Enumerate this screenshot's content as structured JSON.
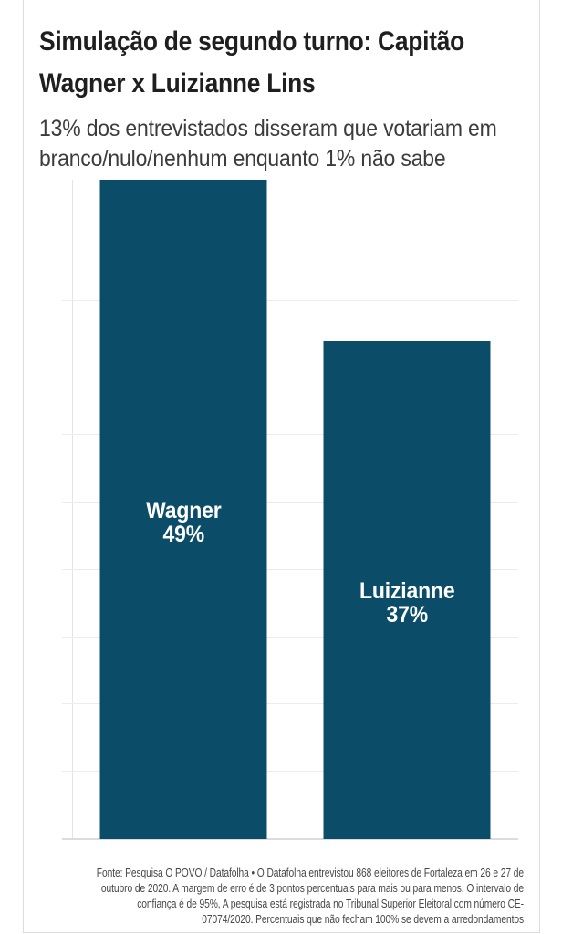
{
  "header": {
    "title": "Simulação de segundo turno: Capitão Wagner x Luizianne Lins",
    "title_lines": [
      "Simulação de segundo turno: Capitão",
      "Wagner x Luizianne Lins"
    ],
    "subtitle": "13% dos entrevistados disseram que votariam em branco/nulo/nenhum enquanto 1% não sabe",
    "subtitle_lines": [
      "13% dos entrevistados disseram que votariam em",
      "branco/nulo/nenhum enquanto 1% não sabe"
    ]
  },
  "chart_data": {
    "type": "bar",
    "title": "Simulação de segundo turno: Capitão Wagner x Luizianne Lins",
    "subtitle": "13% dos entrevistados disseram que votariam em branco/nulo/nenhum enquanto 1% não sabe",
    "categories": [
      "Wagner",
      "Luizianne"
    ],
    "values": [
      49,
      37
    ],
    "value_labels": [
      "49%",
      "37%"
    ],
    "bar_color": "#0b4d68",
    "label_color": "#ffffff",
    "gridline_color": "#ececec",
    "ylim": [
      0,
      49
    ],
    "grid_step": 5,
    "grid": "horizontal gridlines every 5%, tick stubs left of axis, no numeric axis labels",
    "legend": "none",
    "xlabel": "",
    "ylabel": "",
    "source": "Fonte: Pesquisa O POVO / Datafolha • O Datafolha entrevistou 868 eleitores de Fortaleza em 26 e 27 de outubro de 2020. A margem de erro é de 3 pontos percentuais para mais ou para menos. O intervalo de confiança é de 95%, A pesquisa está registrada no Tribunal Superior Eleitoral com número CE-07074/2020. Percentuais que não fecham 100% se devem a arredondamentos"
  },
  "footer": {
    "lines": [
      "Fonte: Pesquisa O POVO / Datafolha • O Datafolha entrevistou 868 eleitores de Fortaleza em 26 e 27 de",
      "outubro de 2020. A margem de erro é de 3 pontos percentuais para mais ou para menos. O intervalo de",
      "confiança é de 95%, A pesquisa está registrada no Tribunal Superior Eleitoral com número CE-",
      "07074/2020. Percentuais que não fecham 100% se devem a arredondamentos"
    ]
  }
}
